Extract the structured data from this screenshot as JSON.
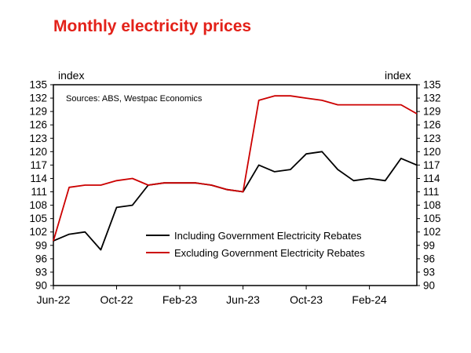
{
  "title": "Monthly electricity prices",
  "title_color": "#e32119",
  "source_note": "Sources: ABS, Westpac Economics",
  "axis_unit_left": "index",
  "axis_unit_right": "index",
  "chart_data": {
    "type": "line",
    "title": "Monthly electricity prices",
    "xlabel": "",
    "ylabel": "index",
    "ylim": [
      90,
      135
    ],
    "ytick_step": 3,
    "grid": false,
    "legend_position": "inside-bottom-center",
    "x": [
      "Jun-22",
      "Jul-22",
      "Aug-22",
      "Sep-22",
      "Oct-22",
      "Nov-22",
      "Dec-22",
      "Jan-23",
      "Feb-23",
      "Mar-23",
      "Apr-23",
      "May-23",
      "Jun-23",
      "Jul-23",
      "Aug-23",
      "Sep-23",
      "Oct-23",
      "Nov-23",
      "Dec-23",
      "Jan-24",
      "Feb-24",
      "Mar-24",
      "Apr-24",
      "May-24"
    ],
    "x_tick_labels": [
      "Jun-22",
      "Oct-22",
      "Feb-23",
      "Jun-23",
      "Oct-23",
      "Feb-24"
    ],
    "series": [
      {
        "name": "Including Government Electricity Rebates",
        "color": "#000000",
        "values": [
          100,
          101.5,
          102,
          98,
          107.5,
          108,
          112.5,
          113,
          113,
          113,
          112.5,
          111.5,
          111,
          117,
          115.5,
          116,
          119.5,
          120,
          116,
          113.5,
          114,
          113.5,
          118.5,
          117
        ]
      },
      {
        "name": "Excluding Government Electricity Rebates",
        "color": "#cc0000",
        "values": [
          100,
          112,
          112.5,
          112.5,
          113.5,
          114,
          112.5,
          113,
          113,
          113,
          112.5,
          111.5,
          111,
          131.5,
          132.5,
          132.5,
          132,
          131.5,
          130.5,
          130.5,
          130.5,
          130.5,
          130.5,
          128.5
        ]
      }
    ]
  }
}
